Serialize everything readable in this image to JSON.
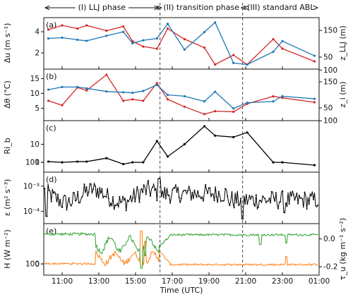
{
  "colors": {
    "red": "#d62728",
    "blue": "#1f77b4",
    "black": "#000000",
    "orange": "#ff7f0e",
    "green": "#2ca02c"
  },
  "phases": [
    {
      "label": "(I) LLJ phase",
      "start": "10:00",
      "end": "16:20"
    },
    {
      "label": "(II) transition phase",
      "start": "16:20",
      "end": "20:50"
    },
    {
      "label": "(III) standard ABL",
      "start": "20:50",
      "end": "01:00"
    }
  ],
  "time_axis": {
    "label": "Time (UTC)",
    "ticks": [
      "11:00",
      "13:00",
      "15:00",
      "17:00",
      "19:00",
      "21:00",
      "23:00",
      "01:00"
    ]
  },
  "chart_data": [
    {
      "type": "line",
      "panel": "(a)",
      "ylabel_left": "Δu (m s⁻¹)",
      "ylabel_right": "z_LLJ (m)",
      "left_ticks": [
        "2",
        "4"
      ],
      "right_ticks": [
        "50",
        "100",
        "150"
      ],
      "ylim_left": [
        0.8,
        5.0
      ],
      "ylim_right": [
        18,
        185
      ],
      "series": [
        {
          "axis": "left",
          "color": "red",
          "x": [
            "10:15",
            "11:00",
            "11:50",
            "12:20",
            "13:25",
            "14:20",
            "14:50",
            "15:25",
            "16:10",
            "16:45",
            "17:40",
            "18:45",
            "19:20",
            "20:20",
            "21:05",
            "22:30",
            "23:00",
            "24:45"
          ],
          "y": [
            4.2,
            4.6,
            4.3,
            4.6,
            4.1,
            4.5,
            3.1,
            2.6,
            2.4,
            4.3,
            3.3,
            2.5,
            0.9,
            1.8,
            0.9,
            3.3,
            2.4,
            1.2
          ]
        },
        {
          "axis": "right",
          "color": "blue",
          "x": [
            "10:15",
            "11:00",
            "11:50",
            "12:20",
            "13:25",
            "14:20",
            "14:50",
            "15:25",
            "16:10",
            "16:45",
            "17:40",
            "18:45",
            "19:20",
            "20:20",
            "21:05",
            "22:30",
            "23:00",
            "24:45"
          ],
          "y": [
            120,
            123,
            115,
            111,
            130,
            145,
            102,
            113,
            120,
            175,
            78,
            144,
            180,
            28,
            22,
            70,
            110,
            55
          ]
        }
      ]
    },
    {
      "type": "line",
      "panel": "(b)",
      "ylabel_left": "Δθ (°C)",
      "ylabel_right": "z_i (m)",
      "left_ticks": [
        "5",
        "10",
        "15"
      ],
      "right_ticks": [
        "50",
        "100",
        "150"
      ],
      "ylim_left": [
        2,
        17
      ],
      "ylim_right": [
        15,
        185
      ],
      "series": [
        {
          "axis": "left",
          "color": "red",
          "x": [
            "10:15",
            "11:00",
            "11:50",
            "12:20",
            "13:25",
            "14:20",
            "14:50",
            "15:25",
            "16:10",
            "16:45",
            "17:40",
            "18:45",
            "19:20",
            "20:20",
            "21:05",
            "22:30",
            "23:00",
            "24:45"
          ],
          "y": [
            7.5,
            6.0,
            12.0,
            11.0,
            16.3,
            7.5,
            8.0,
            7.5,
            13.5,
            8.0,
            5.5,
            3.0,
            4.0,
            3.8,
            6.5,
            9.0,
            8.5,
            7.0
          ]
        },
        {
          "axis": "right",
          "color": "blue",
          "x": [
            "10:15",
            "11:00",
            "11:50",
            "12:20",
            "13:25",
            "14:20",
            "14:50",
            "15:25",
            "16:10",
            "16:45",
            "17:40",
            "18:45",
            "19:20",
            "20:20",
            "21:05",
            "22:30",
            "23:00",
            "24:45"
          ],
          "y": [
            120,
            130,
            130,
            125,
            113,
            110,
            108,
            115,
            138,
            100,
            95,
            75,
            112,
            48,
            70,
            75,
            95,
            85
          ]
        }
      ]
    },
    {
      "type": "line",
      "panel": "(c)",
      "ylabel_left": "Ri_b",
      "left_ticks": [
        "1",
        "10",
        "100"
      ],
      "yscale": "log",
      "ylim_left": [
        0.45,
        130
      ],
      "series": [
        {
          "axis": "left",
          "color": "black",
          "x": [
            "10:15",
            "11:00",
            "11:50",
            "12:20",
            "13:25",
            "14:20",
            "14:50",
            "15:25",
            "16:10",
            "16:45",
            "17:40",
            "18:45",
            "19:20",
            "20:20",
            "21:05",
            "22:30",
            "23:00",
            "24:45"
          ],
          "y": [
            1.1,
            1.0,
            1.1,
            1.1,
            1.7,
            0.8,
            1.0,
            1.0,
            15,
            2.1,
            10,
            100,
            30,
            25,
            45,
            1.0,
            1.0,
            0.7
          ]
        }
      ]
    },
    {
      "type": "line",
      "panel": "(d)",
      "ylabel_left": "ε (m² s⁻³)",
      "left_ticks": [
        "10⁻⁴",
        "10⁻³"
      ],
      "yscale": "log",
      "ylim_left": [
        4.5e-05,
        0.0026
      ],
      "series": [
        {
          "axis": "left",
          "color": "black",
          "x": [],
          "y": []
        }
      ]
    },
    {
      "type": "line",
      "panel": "(e)",
      "ylabel_left": "H (W m⁻²)",
      "ylabel_right": "τ_u (kg m⁻¹ s⁻²)",
      "left_ticks": [
        "0",
        "100"
      ],
      "right_ticks": [
        "-0.2",
        "0.0"
      ],
      "ylim_left": [
        -40,
        195
      ],
      "ylim_right": [
        -0.235,
        0.085
      ],
      "series": [
        {
          "axis": "left",
          "color": "orange",
          "x": [],
          "y": []
        },
        {
          "axis": "right",
          "color": "green",
          "x": [],
          "y": []
        }
      ]
    }
  ]
}
